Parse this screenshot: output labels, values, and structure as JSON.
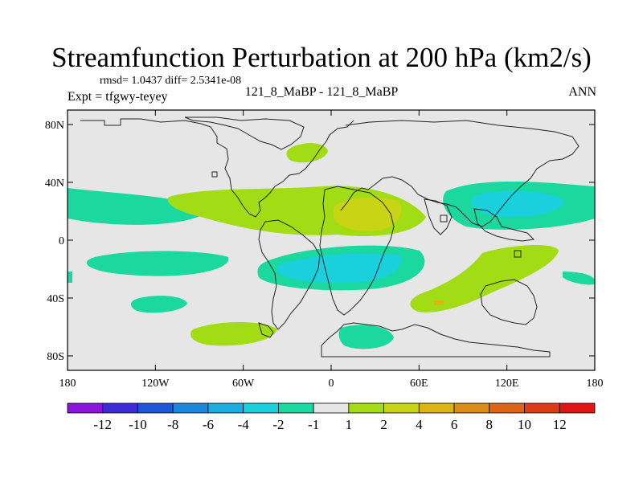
{
  "header": {
    "title": "Streamfunction Perturbation at 200 hPa (km2/s)",
    "stats": "rmsd= 1.0437 diff= 2.5341e-08",
    "expt": "Expt = tfgwy-teyey",
    "cases": "121_8_MaBP - 121_8_MaBP",
    "period": "ANN"
  },
  "chart_data": {
    "type": "heatmap",
    "title": "Streamfunction Perturbation at 200 hPa (km2/s)",
    "xlabel": "",
    "ylabel": "",
    "xlim": [
      -180,
      180
    ],
    "ylim": [
      -90,
      90
    ],
    "x_ticks": [
      {
        "value": -180,
        "label": "180"
      },
      {
        "value": -120,
        "label": "120W"
      },
      {
        "value": -60,
        "label": "60W"
      },
      {
        "value": 0,
        "label": "0"
      },
      {
        "value": 60,
        "label": "60E"
      },
      {
        "value": 120,
        "label": "120E"
      },
      {
        "value": 180,
        "label": "180"
      }
    ],
    "y_ticks": [
      {
        "value": 80,
        "label": "80N"
      },
      {
        "value": 40,
        "label": "40N"
      },
      {
        "value": 0,
        "label": "0"
      },
      {
        "value": -40,
        "label": "40S"
      },
      {
        "value": -80,
        "label": "80S"
      }
    ],
    "colorbar": {
      "colors": [
        "#8c14dc",
        "#3c2cd8",
        "#1a58d8",
        "#1a86dc",
        "#1aaee0",
        "#1ad0dc",
        "#1ad89e",
        "#e6e6e6",
        "#a2dc14",
        "#c8d414",
        "#dcb414",
        "#dc8c14",
        "#dc6414",
        "#dc3c14",
        "#e01414"
      ],
      "labels": [
        "-12",
        "-10",
        "-8",
        "-6",
        "-4",
        "-2",
        "-1",
        "1",
        "2",
        "4",
        "6",
        "8",
        "10",
        "12"
      ]
    },
    "features": [
      {
        "name": "north-atlantic-africa-high",
        "level": 2,
        "lon": -40,
        "lat": 20
      },
      {
        "name": "arabia-core",
        "level": 4,
        "lon": 20,
        "lat": 17
      },
      {
        "name": "north-pacific-low",
        "level": -4,
        "lon": 122,
        "lat": 22
      },
      {
        "name": "south-atlantic-low",
        "level": -4,
        "lon": 20,
        "lat": -20
      },
      {
        "name": "south-indian-high",
        "level": 2,
        "lon": 100,
        "lat": -35
      },
      {
        "name": "south-pacific-low",
        "level": -1,
        "lon": -120,
        "lat": -20
      },
      {
        "name": "southern-high",
        "level": 2,
        "lon": -90,
        "lat": -65
      }
    ]
  }
}
